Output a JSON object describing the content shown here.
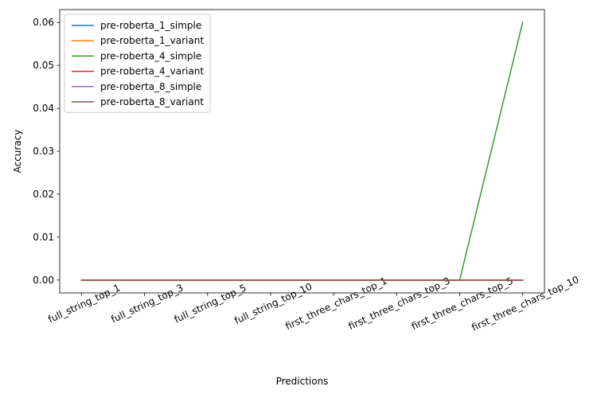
{
  "chart_data": {
    "type": "line",
    "title": "",
    "xlabel": "Predictions",
    "ylabel": "Accuracy",
    "categories": [
      "full_string_top_1",
      "full_string_top_3",
      "full_string_top_5",
      "full_string_top_10",
      "first_three_chars_top_1",
      "first_three_chars_top_3",
      "first_three_chars_top_5",
      "first_three_chars_top_10"
    ],
    "ylim": [
      -0.003,
      0.063
    ],
    "yticks": [
      0.0,
      0.01,
      0.02,
      0.03,
      0.04,
      0.05,
      0.06
    ],
    "ytick_labels": [
      "0.00",
      "0.01",
      "0.02",
      "0.03",
      "0.04",
      "0.05",
      "0.06"
    ],
    "grid": false,
    "legend_position": "upper left",
    "xtick_rotation_deg": 25,
    "series": [
      {
        "name": "pre-roberta_1_simple",
        "color": "#1f77b4",
        "values": [
          0,
          0,
          0,
          0,
          0,
          0,
          0,
          0
        ]
      },
      {
        "name": "pre-roberta_1_variant",
        "color": "#ff7f0e",
        "values": [
          0,
          0,
          0,
          0,
          0,
          0,
          0,
          0
        ]
      },
      {
        "name": "pre-roberta_4_simple",
        "color": "#2ca02c",
        "values": [
          0,
          0,
          0,
          0,
          0,
          0,
          0,
          0.06
        ]
      },
      {
        "name": "pre-roberta_4_variant",
        "color": "#d62728",
        "values": [
          0,
          0,
          0,
          0,
          0,
          0,
          0,
          0
        ]
      },
      {
        "name": "pre-roberta_8_simple",
        "color": "#9467bd",
        "values": [
          0,
          0,
          0,
          0,
          0,
          0,
          0,
          0
        ]
      },
      {
        "name": "pre-roberta_8_variant",
        "color": "#8c564b",
        "values": [
          0,
          0,
          0,
          0,
          0,
          0,
          0,
          0
        ]
      }
    ]
  }
}
